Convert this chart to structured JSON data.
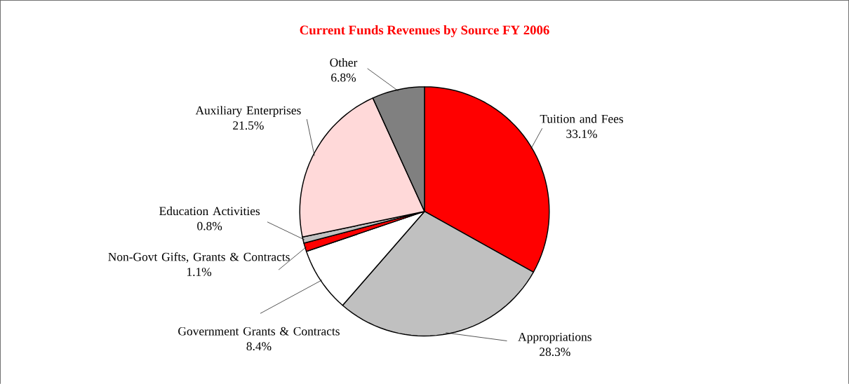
{
  "chart_data": {
    "type": "pie",
    "title": "Current Funds Revenues by Source FY 2006",
    "categories": [
      "Tuition and Fees",
      "Appropriations",
      "Government Grants & Contracts",
      "Non-Govt Gifts, Grants & Contracts",
      "Education Activities",
      "Auxiliary Enterprises",
      "Other"
    ],
    "values": [
      33.1,
      28.3,
      8.4,
      1.1,
      0.8,
      21.5,
      6.8
    ],
    "value_labels": [
      "33.1%",
      "28.3%",
      "8.4%",
      "1.1%",
      "0.8%",
      "21.5%",
      "6.8%"
    ],
    "colors": [
      "#ff0000",
      "#c0c0c0",
      "#ffffff",
      "#ff0000",
      "#c0c0c0",
      "#ffd9d9",
      "#808080"
    ]
  }
}
